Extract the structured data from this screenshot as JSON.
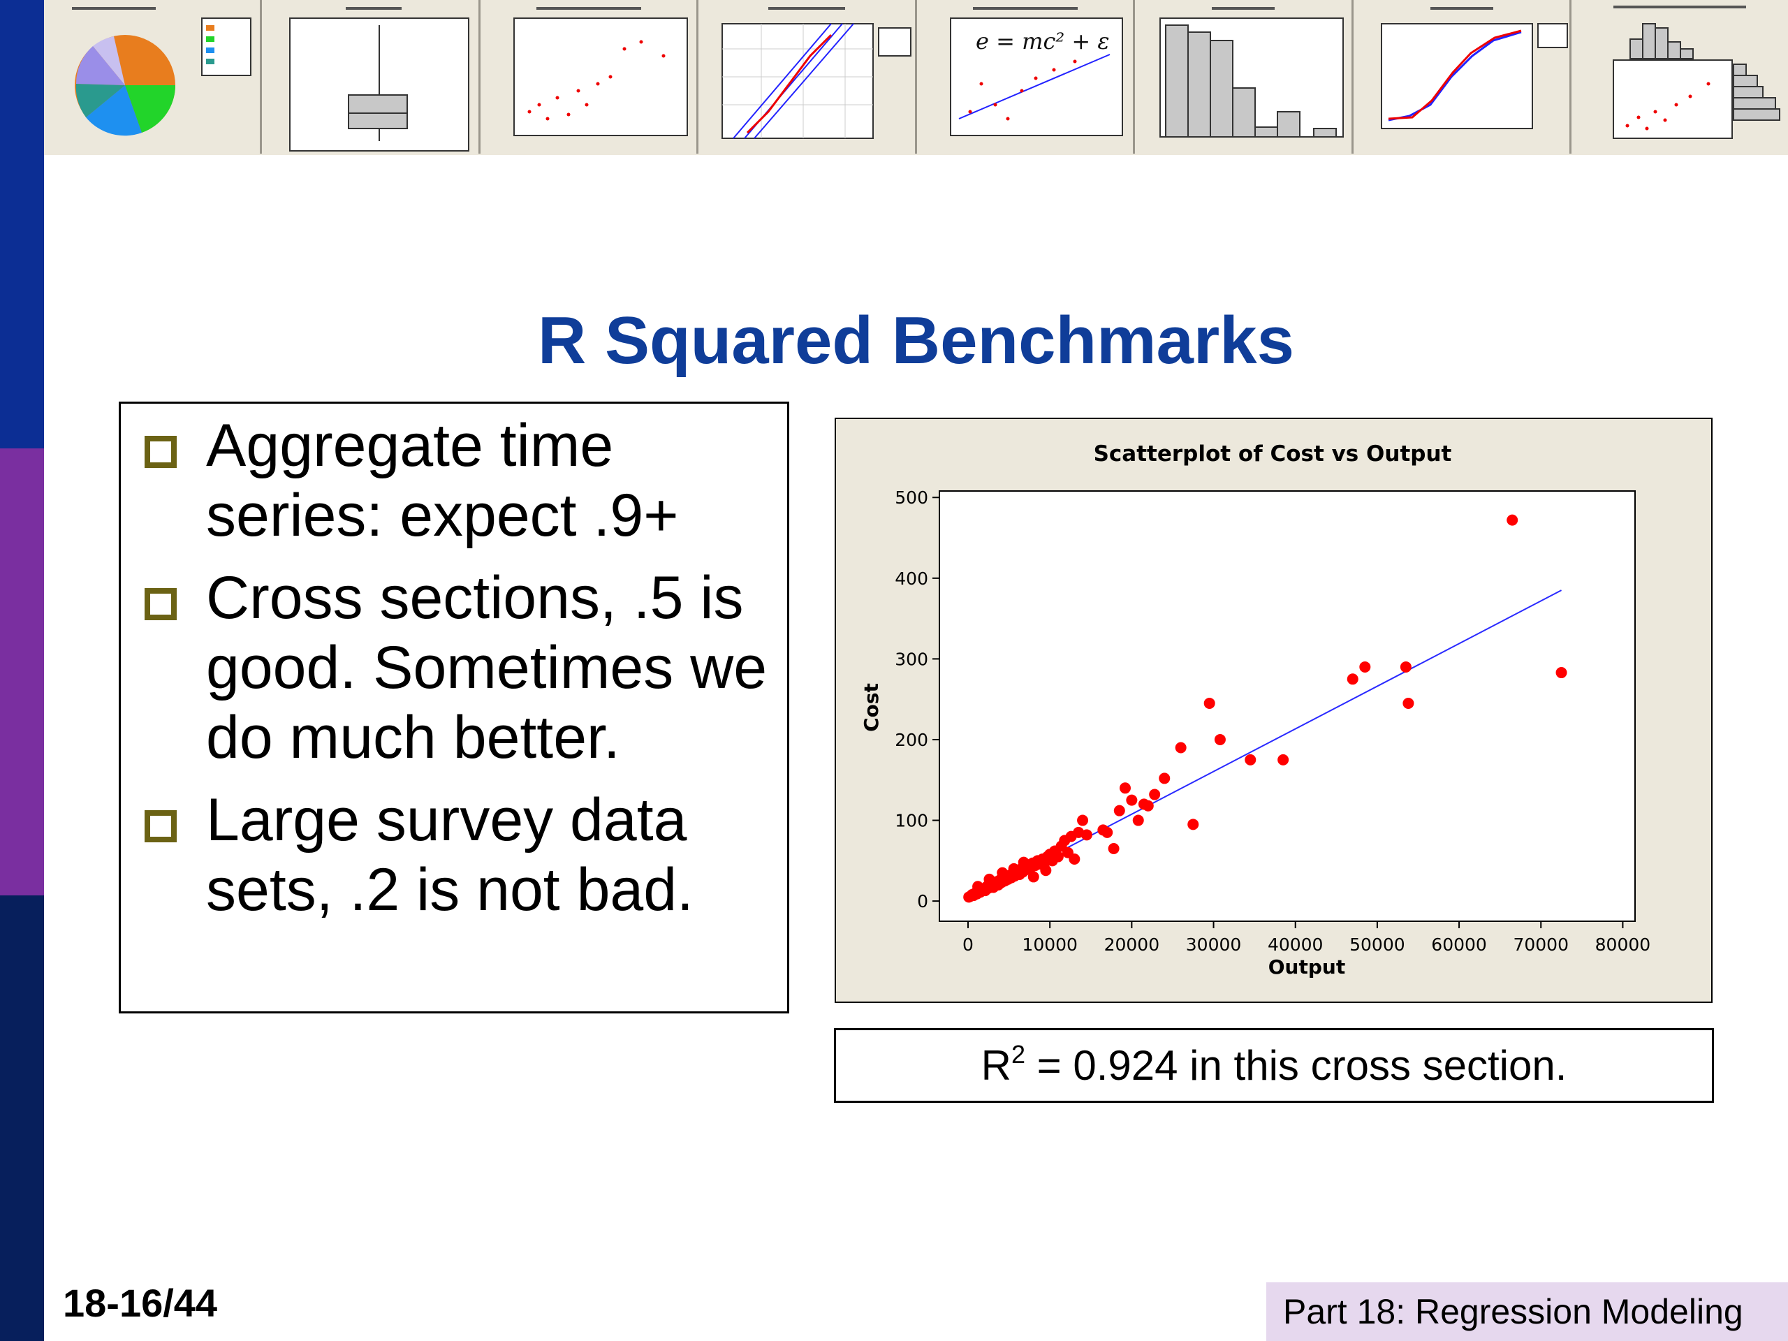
{
  "slide": {
    "title": "R Squared Benchmarks",
    "page_number": "18-16/44",
    "footer": "Part 18: Regression Modeling"
  },
  "sidebar_colors": [
    "#0c2e94",
    "#7a2fa0",
    "#071f5c"
  ],
  "banner": {
    "formula": "e = mc² + ε"
  },
  "bullets": [
    {
      "text": "Aggregate time series: expect .9+"
    },
    {
      "text": "Cross sections, .5 is good. Sometimes we do much better."
    },
    {
      "text": "Large survey data sets, .2 is not bad."
    }
  ],
  "caption": {
    "prefix": "R",
    "superscript": "2",
    "suffix": " = 0.924 in this cross section."
  },
  "chart_data": {
    "type": "scatter",
    "title": "Scatterplot of Cost vs Output",
    "xlabel": "Output",
    "ylabel": "Cost",
    "xlim": [
      -3500,
      81500
    ],
    "ylim": [
      -25,
      508
    ],
    "xticks": [
      0,
      10000,
      20000,
      30000,
      40000,
      50000,
      60000,
      70000,
      80000
    ],
    "yticks": [
      0,
      100,
      200,
      300,
      400,
      500
    ],
    "grid": false,
    "colors": {
      "points": "#ff0000",
      "line": "#2a2aff",
      "background": "#ece8dc"
    },
    "fit_line": {
      "x": [
        0,
        72500
      ],
      "y": [
        2,
        385
      ]
    },
    "points": [
      [
        100,
        5
      ],
      [
        300,
        6
      ],
      [
        500,
        8
      ],
      [
        700,
        7
      ],
      [
        900,
        10
      ],
      [
        1100,
        9
      ],
      [
        1300,
        12
      ],
      [
        1500,
        11
      ],
      [
        1700,
        14
      ],
      [
        1900,
        15
      ],
      [
        2100,
        13
      ],
      [
        2300,
        18
      ],
      [
        2500,
        16
      ],
      [
        2700,
        19
      ],
      [
        2900,
        21
      ],
      [
        3100,
        17
      ],
      [
        3300,
        22
      ],
      [
        3500,
        24
      ],
      [
        3700,
        20
      ],
      [
        3900,
        26
      ],
      [
        4100,
        23
      ],
      [
        4300,
        28
      ],
      [
        4500,
        25
      ],
      [
        4700,
        30
      ],
      [
        4900,
        27
      ],
      [
        5100,
        32
      ],
      [
        5300,
        29
      ],
      [
        5500,
        34
      ],
      [
        5700,
        31
      ],
      [
        5900,
        35
      ],
      [
        6100,
        38
      ],
      [
        6300,
        33
      ],
      [
        6500,
        40
      ],
      [
        6700,
        36
      ],
      [
        6900,
        42
      ],
      [
        7100,
        39
      ],
      [
        7300,
        45
      ],
      [
        7600,
        41
      ],
      [
        7900,
        47
      ],
      [
        8200,
        44
      ],
      [
        8500,
        50
      ],
      [
        8800,
        46
      ],
      [
        9100,
        52
      ],
      [
        9400,
        48
      ],
      [
        9700,
        55
      ],
      [
        10000,
        58
      ],
      [
        10300,
        50
      ],
      [
        10600,
        62
      ],
      [
        11000,
        55
      ],
      [
        11400,
        68
      ],
      [
        11800,
        75
      ],
      [
        12200,
        60
      ],
      [
        12600,
        80
      ],
      [
        13000,
        52
      ],
      [
        13500,
        85
      ],
      [
        14000,
        100
      ],
      [
        14500,
        82
      ],
      [
        1200,
        18
      ],
      [
        2600,
        27
      ],
      [
        4200,
        35
      ],
      [
        5600,
        40
      ],
      [
        6800,
        48
      ],
      [
        8000,
        30
      ],
      [
        9500,
        38
      ],
      [
        16500,
        88
      ],
      [
        17000,
        85
      ],
      [
        17800,
        65
      ],
      [
        18500,
        112
      ],
      [
        19200,
        140
      ],
      [
        20000,
        125
      ],
      [
        20800,
        100
      ],
      [
        21500,
        120
      ],
      [
        22000,
        118
      ],
      [
        22800,
        132
      ],
      [
        24000,
        152
      ],
      [
        26000,
        190
      ],
      [
        27500,
        95
      ],
      [
        29500,
        245
      ],
      [
        30800,
        200
      ],
      [
        34500,
        175
      ],
      [
        38500,
        175
      ],
      [
        47000,
        275
      ],
      [
        48500,
        290
      ],
      [
        53500,
        290
      ],
      [
        53800,
        245
      ],
      [
        66500,
        472
      ],
      [
        72500,
        283
      ]
    ]
  }
}
